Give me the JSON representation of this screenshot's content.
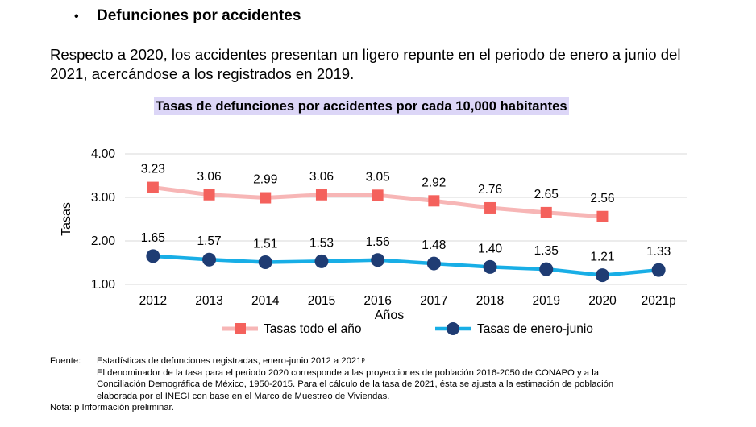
{
  "section": {
    "bullet": "•",
    "heading": "Defunciones por accidentes"
  },
  "intro": "Respecto a 2020, los accidentes presentan un ligero repunte en el periodo de enero a junio del 2021, acercándose a los registrados en 2019.",
  "chart_data": {
    "type": "line",
    "title": "Tasas de defunciones por accidentes por cada 10,000 habitantes",
    "xlabel": "Años",
    "ylabel": "Tasas",
    "categories": [
      "2012",
      "2013",
      "2014",
      "2015",
      "2016",
      "2017",
      "2018",
      "2019",
      "2020",
      "2021p"
    ],
    "ylim": [
      1.0,
      4.0
    ],
    "yticks": [
      "1.00",
      "2.00",
      "3.00",
      "4.00"
    ],
    "grid": true,
    "legend_position": "bottom",
    "series": [
      {
        "name": "Tasas todo el año",
        "values": [
          3.23,
          3.06,
          2.99,
          3.06,
          3.05,
          2.92,
          2.76,
          2.65,
          2.56,
          null
        ],
        "labels": [
          "3.23",
          "3.06",
          "2.99",
          "3.06",
          "3.05",
          "2.92",
          "2.76",
          "2.65",
          "2.56",
          ""
        ],
        "color": "#f7b6b6",
        "marker_color": "#f4615c",
        "marker": "square"
      },
      {
        "name": "Tasas de enero-junio",
        "values": [
          1.65,
          1.57,
          1.51,
          1.53,
          1.56,
          1.48,
          1.4,
          1.35,
          1.21,
          1.33
        ],
        "labels": [
          "1.65",
          "1.57",
          "1.51",
          "1.53",
          "1.56",
          "1.48",
          "1.40",
          "1.35",
          "1.21",
          "1.33"
        ],
        "color": "#18aee6",
        "marker_color": "#1f3c73",
        "marker": "circle"
      }
    ]
  },
  "notes": {
    "source_label": "Fuente:",
    "source_line": "Estadísticas de defunciones registradas, enero-junio 2012 a 2021ᵖ",
    "extra_lines": [
      "El denominador de la tasa para el periodo 2020 corresponde a las proyecciones de población 2016-2050 de CONAPO y a la",
      "Conciliación Demográfica de México, 1950-2015. Para el cálculo de la tasa de 2021, ésta se ajusta a la estimación de población",
      "elaborada por el INEGI con base en el Marco de Muestreo de Viviendas."
    ],
    "note": "Nota: p Información preliminar."
  }
}
